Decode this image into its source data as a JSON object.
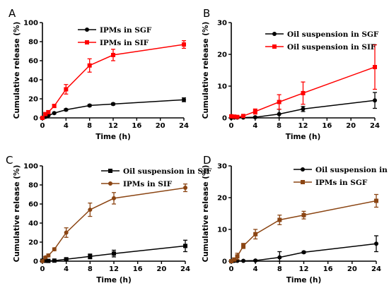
{
  "chart_data": [
    {
      "panel_label": "A",
      "type": "line",
      "xlabel": "Time (h)",
      "ylabel": "Cumulative release (%)",
      "xlim": [
        0,
        24
      ],
      "ylim": [
        0,
        100
      ],
      "xticks": [
        0,
        4,
        8,
        12,
        16,
        20,
        24
      ],
      "yticks": [
        0,
        20,
        40,
        60,
        80,
        100
      ],
      "legend_position": "upper-left",
      "grid": false,
      "series": [
        {
          "name": "IPMs in SGF",
          "color": "#000000",
          "marker": "circle",
          "x": [
            0,
            0.5,
            1,
            2,
            4,
            8,
            12,
            24
          ],
          "y": [
            0,
            1,
            2.5,
            5,
            8.5,
            13,
            14.5,
            19
          ],
          "err": [
            0,
            0.5,
            0.5,
            0.8,
            1,
            1,
            1,
            2
          ]
        },
        {
          "name": "IPMs in SIF",
          "color": "#ff0000",
          "marker": "square",
          "x": [
            0,
            0.5,
            1,
            2,
            4,
            8,
            12,
            24
          ],
          "y": [
            0,
            4,
            6,
            12.5,
            30,
            55,
            66,
            77
          ],
          "err": [
            0,
            1,
            1.5,
            1.5,
            5,
            7,
            6,
            4
          ]
        }
      ]
    },
    {
      "panel_label": "B",
      "type": "line",
      "xlabel": "Time (h)",
      "ylabel": "Cumulative release (%)",
      "xlim": [
        0,
        24
      ],
      "ylim": [
        0,
        30
      ],
      "xticks": [
        0,
        4,
        8,
        12,
        16,
        20,
        24
      ],
      "yticks": [
        0,
        10,
        20,
        30
      ],
      "legend_position": "upper-left",
      "grid": false,
      "series": [
        {
          "name": "Oil suspension in SGF",
          "color": "#000000",
          "marker": "circle",
          "x": [
            0,
            0.5,
            1,
            2,
            4,
            8,
            12,
            24
          ],
          "y": [
            0,
            0.1,
            0.1,
            0.1,
            0.2,
            1.2,
            2.8,
            5.5
          ],
          "err": [
            0,
            0.1,
            0.1,
            0.1,
            0.2,
            1.5,
            0.8,
            2.5
          ]
        },
        {
          "name": "Oil suspension in SIF",
          "color": "#ff0000",
          "marker": "square",
          "x": [
            0,
            0.5,
            1,
            2,
            4,
            8,
            12,
            24
          ],
          "y": [
            0.5,
            0.4,
            0.3,
            0.6,
            2,
            5,
            7.8,
            16
          ],
          "err": [
            0.3,
            0.3,
            0.3,
            0.3,
            0.8,
            2.3,
            3.5,
            7
          ]
        }
      ]
    },
    {
      "panel_label": "C",
      "type": "line",
      "xlabel": "Time (h)",
      "ylabel": "Cumulative release (%)",
      "xlim": [
        0,
        24
      ],
      "ylim": [
        0,
        100
      ],
      "xticks": [
        0,
        4,
        8,
        12,
        16,
        20,
        24
      ],
      "yticks": [
        0,
        20,
        40,
        60,
        80,
        100
      ],
      "legend_position": "upper-center",
      "grid": false,
      "series": [
        {
          "name": "Oil suspension in SIF",
          "color": "#000000",
          "marker": "square",
          "x": [
            0,
            0.5,
            1,
            2,
            4,
            8,
            12,
            24
          ],
          "y": [
            0.5,
            0.4,
            0.3,
            0.6,
            2,
            5,
            8,
            16
          ],
          "err": [
            0.3,
            0.3,
            0.3,
            0.3,
            1,
            2.5,
            3.5,
            6
          ]
        },
        {
          "name": "IPMs in SIF",
          "color": "#8b4513",
          "marker": "circle",
          "x": [
            0,
            0.5,
            1,
            2,
            4,
            8,
            12,
            24
          ],
          "y": [
            0,
            4,
            6,
            12.5,
            30,
            54,
            66,
            77
          ],
          "err": [
            0,
            1,
            1.5,
            1.5,
            5,
            7,
            6,
            4
          ]
        }
      ]
    },
    {
      "panel_label": "D",
      "type": "line",
      "xlabel": "Time (h)",
      "ylabel": "Cumulative release (%)",
      "xlim": [
        0,
        24
      ],
      "ylim": [
        0,
        30
      ],
      "xticks": [
        0,
        4,
        8,
        12,
        16,
        20,
        24
      ],
      "yticks": [
        0,
        10,
        20,
        30
      ],
      "legend_position": "upper-center",
      "grid": false,
      "series": [
        {
          "name": "Oil suspension in SGF",
          "color": "#000000",
          "marker": "circle",
          "x": [
            0,
            0.5,
            1,
            2,
            4,
            8,
            12,
            24
          ],
          "y": [
            0,
            0.1,
            0.1,
            0.1,
            0.2,
            1.2,
            2.8,
            5.5
          ],
          "err": [
            0,
            0.1,
            0.1,
            0.1,
            0.2,
            1.8,
            0.3,
            2.5
          ]
        },
        {
          "name": "IPMs in SGF",
          "color": "#8b4513",
          "marker": "square",
          "x": [
            0,
            0.5,
            1,
            2,
            4,
            8,
            12,
            24
          ],
          "y": [
            0,
            0.5,
            1.5,
            4.8,
            8.5,
            13,
            14.5,
            19
          ],
          "err": [
            0,
            0.5,
            1,
            0.8,
            1.5,
            1.5,
            1.2,
            2
          ]
        }
      ]
    }
  ]
}
